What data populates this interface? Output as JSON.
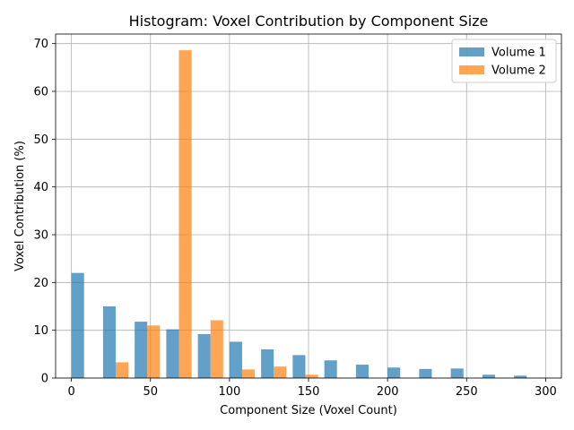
{
  "chart_data": {
    "type": "bar",
    "title": "Histogram: Voxel Contribution by Component Size",
    "xlabel": "Component Size (Voxel Count)",
    "ylabel": "Voxel Contribution (%)",
    "xlim": [
      -10,
      310
    ],
    "ylim": [
      0,
      72
    ],
    "xticks": [
      0,
      50,
      100,
      150,
      200,
      250,
      300
    ],
    "yticks": [
      0,
      10,
      20,
      30,
      40,
      50,
      60,
      70
    ],
    "bin_width": 20,
    "grid": true,
    "legend_position": "top-right",
    "series": [
      {
        "name": "Volume 1",
        "color": "#1f77b4",
        "opacity": 0.7,
        "bins": [
          {
            "x": 0,
            "value": 22.0
          },
          {
            "x": 20,
            "value": 15.0
          },
          {
            "x": 40,
            "value": 11.8
          },
          {
            "x": 60,
            "value": 10.2
          },
          {
            "x": 80,
            "value": 9.2
          },
          {
            "x": 100,
            "value": 7.6
          },
          {
            "x": 120,
            "value": 6.0
          },
          {
            "x": 140,
            "value": 4.8
          },
          {
            "x": 160,
            "value": 3.7
          },
          {
            "x": 180,
            "value": 2.8
          },
          {
            "x": 200,
            "value": 2.2
          },
          {
            "x": 220,
            "value": 1.9
          },
          {
            "x": 240,
            "value": 2.0
          },
          {
            "x": 260,
            "value": 0.7
          },
          {
            "x": 280,
            "value": 0.5
          }
        ]
      },
      {
        "name": "Volume 2",
        "color": "#ff7f0e",
        "opacity": 0.7,
        "bins": [
          {
            "x": 20,
            "value": 3.3
          },
          {
            "x": 40,
            "value": 11.0
          },
          {
            "x": 60,
            "value": 68.6
          },
          {
            "x": 80,
            "value": 12.1
          },
          {
            "x": 100,
            "value": 1.8
          },
          {
            "x": 120,
            "value": 2.4
          },
          {
            "x": 140,
            "value": 0.7
          }
        ]
      }
    ]
  }
}
